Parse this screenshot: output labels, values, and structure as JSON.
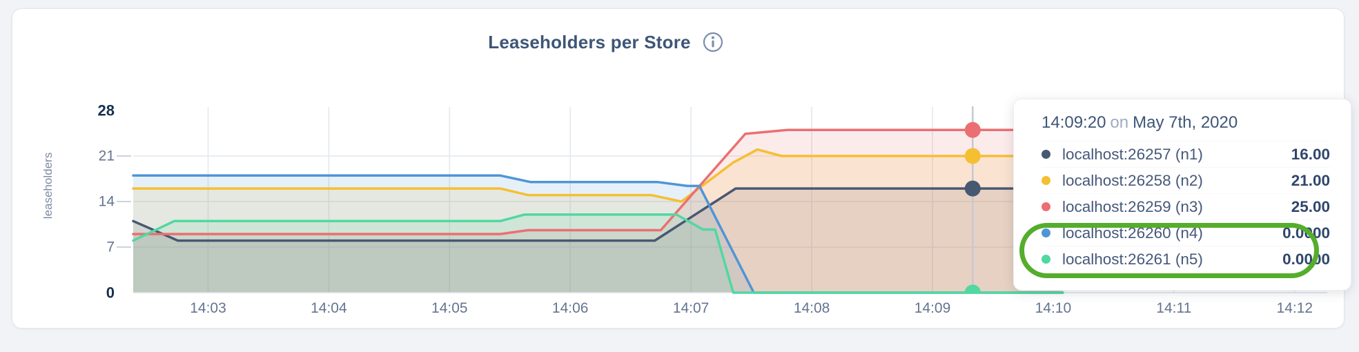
{
  "page": {
    "title": "Leaseholders per Store"
  },
  "chart_data": {
    "type": "area",
    "title": "Leaseholders per Store",
    "xlabel": "",
    "ylabel": "leaseholders",
    "ylim": [
      0,
      28
    ],
    "grid": true,
    "legend_position": "tooltip",
    "y_ticks": [
      {
        "value": 28,
        "label": "28",
        "bold": true
      },
      {
        "value": 21,
        "label": "21",
        "bold": false
      },
      {
        "value": 14,
        "label": "14",
        "bold": false
      },
      {
        "value": 7,
        "label": "7",
        "bold": false
      },
      {
        "value": 0,
        "label": "0",
        "bold": true
      }
    ],
    "x_ticks": [
      {
        "t": 3,
        "label": "14:03"
      },
      {
        "t": 4,
        "label": "14:04"
      },
      {
        "t": 5,
        "label": "14:05"
      },
      {
        "t": 6,
        "label": "14:06"
      },
      {
        "t": 7,
        "label": "14:07"
      },
      {
        "t": 8,
        "label": "14:08"
      },
      {
        "t": 9,
        "label": "14:09"
      },
      {
        "t": 10,
        "label": "14:10"
      },
      {
        "t": 11,
        "label": "14:11"
      },
      {
        "t": 12,
        "label": "14:12"
      }
    ],
    "x_domain": {
      "start": 2.38,
      "end": 12.27,
      "unit": "minutes-after-14:00"
    },
    "fill_opacity": 0.14,
    "series": [
      {
        "name": "localhost:26257 (n1)",
        "color": "#475872",
        "points": [
          [
            2.38,
            11
          ],
          [
            2.75,
            8
          ],
          [
            6.7,
            8
          ],
          [
            7.37,
            16
          ],
          [
            10.08,
            16
          ]
        ]
      },
      {
        "name": "localhost:26258 (n2)",
        "color": "#f5bf32",
        "points": [
          [
            2.38,
            16
          ],
          [
            5.42,
            16
          ],
          [
            5.65,
            15
          ],
          [
            6.67,
            15
          ],
          [
            6.92,
            14
          ],
          [
            7.35,
            20
          ],
          [
            7.55,
            22
          ],
          [
            7.75,
            21
          ],
          [
            10.08,
            21
          ]
        ]
      },
      {
        "name": "localhost:26259 (n3)",
        "color": "#eb6f72",
        "points": [
          [
            2.38,
            9
          ],
          [
            5.42,
            9
          ],
          [
            5.65,
            9.6
          ],
          [
            6.75,
            9.6
          ],
          [
            7.45,
            24.4
          ],
          [
            7.8,
            25
          ],
          [
            10.08,
            25
          ]
        ]
      },
      {
        "name": "localhost:26260 (n4)",
        "color": "#4f95d6",
        "points": [
          [
            2.38,
            18
          ],
          [
            5.42,
            18
          ],
          [
            5.67,
            17
          ],
          [
            6.72,
            17
          ],
          [
            6.97,
            16.4
          ],
          [
            7.07,
            16.4
          ],
          [
            7.52,
            0
          ],
          [
            10.08,
            0
          ]
        ]
      },
      {
        "name": "localhost:26261 (n5)",
        "color": "#50d8a0",
        "points": [
          [
            2.38,
            8
          ],
          [
            2.72,
            11
          ],
          [
            5.42,
            11
          ],
          [
            5.62,
            12
          ],
          [
            6.88,
            12
          ],
          [
            7.1,
            9.7
          ],
          [
            7.2,
            9.7
          ],
          [
            7.35,
            0
          ],
          [
            10.08,
            0
          ]
        ]
      }
    ],
    "hover": {
      "t": 9.3333,
      "time": "14:09:20",
      "date": "May 7th, 2020",
      "values": [
        16,
        21,
        25,
        0,
        0
      ]
    }
  },
  "tooltip": {
    "time": "14:09:20",
    "separator": "on",
    "date": "May 7th, 2020",
    "rows": [
      {
        "name": "localhost:26257 (n1)",
        "value": "16.00"
      },
      {
        "name": "localhost:26258 (n2)",
        "value": "21.00"
      },
      {
        "name": "localhost:26259 (n3)",
        "value": "25.00"
      },
      {
        "name": "localhost:26260 (n4)",
        "value": "0.0000"
      },
      {
        "name": "localhost:26261 (n5)",
        "value": "0.0000"
      }
    ]
  },
  "annotation": {
    "shape": "oval-highlight",
    "color": "#55ad2c"
  },
  "colors": {
    "title": "#3e5577",
    "axis_tick": "#64748f",
    "axis_tick_bold": "#16304f",
    "axis_label": "#7c89a3",
    "gridline": "#e4e8ee",
    "crosshair": "#c3c9d2",
    "page_background": "#f1f3f7"
  }
}
